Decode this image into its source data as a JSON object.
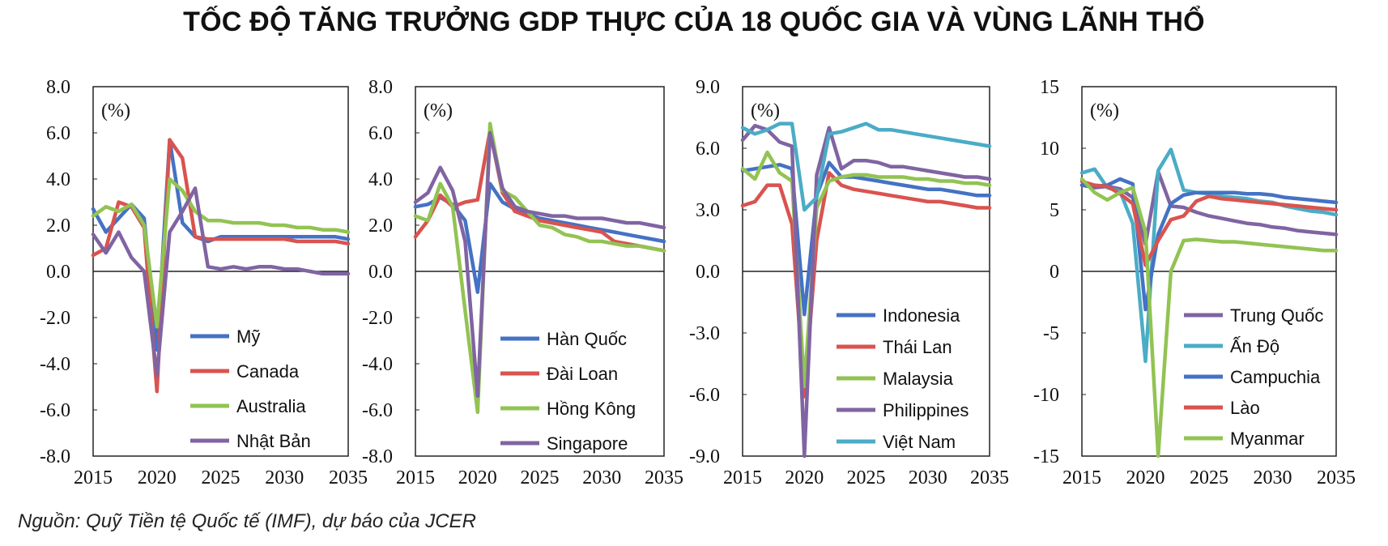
{
  "title": "TỐC ĐỘ TĂNG TRƯỞNG GDP THỰC CỦA 18 QUỐC GIA VÀ VÙNG LÃNH THỔ",
  "source": "Nguồn: Quỹ Tiền tệ Quốc tế (IMF), dự báo của JCER",
  "chart_data": [
    {
      "type": "line",
      "unit_label": "(%)",
      "ylim": [
        -8,
        8
      ],
      "yticks": [
        8,
        6,
        4,
        2,
        0,
        -2,
        -4,
        -6,
        -8
      ],
      "ytick_labels": [
        "8.0",
        "6.0",
        "4.0",
        "2.0",
        "0.0",
        "-2.0",
        "-4.0",
        "-6.0",
        "-8.0"
      ],
      "xlim": [
        2015,
        2035
      ],
      "xticks": [
        2015,
        2020,
        2025,
        2030,
        2035
      ],
      "x": [
        2015,
        2016,
        2017,
        2018,
        2019,
        2020,
        2021,
        2022,
        2023,
        2024,
        2025,
        2026,
        2027,
        2028,
        2029,
        2030,
        2031,
        2032,
        2033,
        2034,
        2035
      ],
      "series": [
        {
          "name": "Mỹ",
          "color": "#4472C4",
          "values": [
            2.7,
            1.7,
            2.3,
            2.9,
            2.3,
            -3.4,
            5.7,
            2.1,
            1.5,
            1.3,
            1.5,
            1.5,
            1.5,
            1.5,
            1.5,
            1.5,
            1.5,
            1.5,
            1.5,
            1.5,
            1.4
          ]
        },
        {
          "name": "Canada",
          "color": "#D9534F",
          "values": [
            0.7,
            1.0,
            3.0,
            2.8,
            1.9,
            -5.2,
            5.7,
            4.9,
            1.5,
            1.4,
            1.4,
            1.4,
            1.4,
            1.4,
            1.4,
            1.4,
            1.3,
            1.3,
            1.3,
            1.3,
            1.2
          ]
        },
        {
          "name": "Australia",
          "color": "#92C353",
          "values": [
            2.4,
            2.8,
            2.6,
            2.9,
            2.0,
            -2.4,
            4.0,
            3.5,
            2.6,
            2.2,
            2.2,
            2.1,
            2.1,
            2.1,
            2.0,
            2.0,
            1.9,
            1.9,
            1.8,
            1.8,
            1.7
          ]
        },
        {
          "name": "Nhật Bản",
          "color": "#8064A2",
          "values": [
            1.6,
            0.8,
            1.7,
            0.6,
            0.0,
            -4.5,
            1.7,
            2.6,
            3.6,
            0.2,
            0.1,
            0.2,
            0.1,
            0.2,
            0.2,
            0.1,
            0.1,
            0.0,
            -0.1,
            -0.1,
            -0.1
          ]
        }
      ]
    },
    {
      "type": "line",
      "unit_label": "(%)",
      "ylim": [
        -8,
        8
      ],
      "yticks": [
        8,
        6,
        4,
        2,
        0,
        -2,
        -4,
        -6,
        -8
      ],
      "ytick_labels": [
        "8.0",
        "6.0",
        "4.0",
        "2.0",
        "0.0",
        "-2.0",
        "-4.0",
        "-6.0",
        "-8.0"
      ],
      "xlim": [
        2015,
        2035
      ],
      "xticks": [
        2015,
        2020,
        2025,
        2030,
        2035
      ],
      "x": [
        2015,
        2016,
        2017,
        2018,
        2019,
        2020,
        2021,
        2022,
        2023,
        2024,
        2025,
        2026,
        2027,
        2028,
        2029,
        2030,
        2031,
        2032,
        2033,
        2034,
        2035
      ],
      "series": [
        {
          "name": "Hàn Quốc",
          "color": "#4472C4",
          "values": [
            2.8,
            2.9,
            3.2,
            2.9,
            2.2,
            -0.9,
            3.8,
            3.0,
            2.7,
            2.5,
            2.3,
            2.2,
            2.1,
            2.0,
            1.9,
            1.8,
            1.7,
            1.6,
            1.5,
            1.4,
            1.3
          ]
        },
        {
          "name": "Đài Loan",
          "color": "#D9534F",
          "values": [
            1.5,
            2.2,
            3.3,
            2.8,
            3.0,
            3.1,
            6.1,
            3.4,
            2.6,
            2.4,
            2.2,
            2.1,
            2.0,
            1.9,
            1.8,
            1.7,
            1.3,
            1.2,
            1.1,
            1.0,
            0.9
          ]
        },
        {
          "name": "Hồng Kông",
          "color": "#92C353",
          "values": [
            2.4,
            2.2,
            3.8,
            2.8,
            -1.7,
            -6.1,
            6.4,
            3.5,
            3.2,
            2.6,
            2.0,
            1.9,
            1.6,
            1.5,
            1.3,
            1.3,
            1.2,
            1.1,
            1.1,
            1.0,
            0.9
          ]
        },
        {
          "name": "Singapore",
          "color": "#8064A2",
          "values": [
            3.0,
            3.4,
            4.5,
            3.5,
            1.3,
            -5.4,
            6.0,
            3.6,
            2.8,
            2.6,
            2.5,
            2.4,
            2.4,
            2.3,
            2.3,
            2.3,
            2.2,
            2.1,
            2.1,
            2.0,
            1.9
          ]
        }
      ]
    },
    {
      "type": "line",
      "unit_label": "(%)",
      "ylim": [
        -9,
        9
      ],
      "yticks": [
        9,
        6,
        3,
        0,
        -3,
        -6,
        -9
      ],
      "ytick_labels": [
        "9.0",
        "6.0",
        "3.0",
        "0.0",
        "-3.0",
        "-6.0",
        "-9.0"
      ],
      "xlim": [
        2015,
        2035
      ],
      "xticks": [
        2015,
        2020,
        2025,
        2030,
        2035
      ],
      "x": [
        2015,
        2016,
        2017,
        2018,
        2019,
        2020,
        2021,
        2022,
        2023,
        2024,
        2025,
        2026,
        2027,
        2028,
        2029,
        2030,
        2031,
        2032,
        2033,
        2034,
        2035
      ],
      "series": [
        {
          "name": "Indonesia",
          "color": "#4472C4",
          "values": [
            4.9,
            5.0,
            5.1,
            5.2,
            5.0,
            -2.1,
            3.7,
            5.3,
            4.6,
            4.6,
            4.5,
            4.4,
            4.3,
            4.2,
            4.1,
            4.0,
            4.0,
            3.9,
            3.8,
            3.7,
            3.7
          ]
        },
        {
          "name": "Thái Lan",
          "color": "#D9534F",
          "values": [
            3.2,
            3.4,
            4.2,
            4.2,
            2.3,
            -6.1,
            1.5,
            4.8,
            4.2,
            4.0,
            3.9,
            3.8,
            3.7,
            3.6,
            3.5,
            3.4,
            3.4,
            3.3,
            3.2,
            3.1,
            3.1
          ]
        },
        {
          "name": "Malaysia",
          "color": "#92C353",
          "values": [
            5.0,
            4.5,
            5.8,
            4.8,
            4.4,
            -5.6,
            3.1,
            4.4,
            4.6,
            4.7,
            4.7,
            4.6,
            4.6,
            4.6,
            4.5,
            4.5,
            4.4,
            4.4,
            4.3,
            4.3,
            4.2
          ]
        },
        {
          "name": "Philippines",
          "color": "#8064A2",
          "values": [
            6.4,
            7.1,
            6.9,
            6.3,
            6.1,
            -9.0,
            4.7,
            7.0,
            5.0,
            5.4,
            5.4,
            5.3,
            5.1,
            5.1,
            5.0,
            4.9,
            4.8,
            4.7,
            4.6,
            4.6,
            4.5
          ]
        },
        {
          "name": "Việt Nam",
          "color": "#4BACC6",
          "values": [
            7.0,
            6.7,
            6.9,
            7.2,
            7.2,
            3.0,
            3.6,
            6.7,
            6.8,
            7.0,
            7.2,
            6.9,
            6.9,
            6.8,
            6.7,
            6.6,
            6.5,
            6.4,
            6.3,
            6.2,
            6.1
          ]
        }
      ]
    },
    {
      "type": "line",
      "unit_label": "(%)",
      "ylim": [
        -15,
        15
      ],
      "yticks": [
        15,
        10,
        5,
        0,
        -5,
        -10,
        -15
      ],
      "ytick_labels": [
        "15",
        "10",
        "5",
        "0",
        "-5",
        "-10",
        "-15"
      ],
      "xlim": [
        2015,
        2035
      ],
      "xticks": [
        2015,
        2020,
        2025,
        2030,
        2035
      ],
      "x": [
        2015,
        2016,
        2017,
        2018,
        2019,
        2020,
        2021,
        2022,
        2023,
        2024,
        2025,
        2026,
        2027,
        2028,
        2029,
        2030,
        2031,
        2032,
        2033,
        2034,
        2035
      ],
      "series": [
        {
          "name": "Trung Quốc",
          "color": "#8064A2",
          "values": [
            7.0,
            6.8,
            6.9,
            6.7,
            6.0,
            2.2,
            8.1,
            5.3,
            5.2,
            4.8,
            4.5,
            4.3,
            4.1,
            3.9,
            3.8,
            3.6,
            3.5,
            3.3,
            3.2,
            3.1,
            3.0
          ]
        },
        {
          "name": "Ấn Độ",
          "color": "#4BACC6",
          "values": [
            8.0,
            8.3,
            6.8,
            6.5,
            3.9,
            -7.3,
            8.2,
            9.9,
            6.6,
            6.4,
            6.3,
            6.1,
            6.0,
            5.9,
            5.7,
            5.6,
            5.3,
            5.1,
            4.9,
            4.8,
            4.6
          ]
        },
        {
          "name": "Campuchia",
          "color": "#4472C4",
          "values": [
            7.0,
            6.9,
            7.0,
            7.5,
            7.1,
            -3.1,
            3.0,
            5.5,
            6.2,
            6.4,
            6.4,
            6.4,
            6.4,
            6.3,
            6.3,
            6.2,
            6.0,
            5.9,
            5.8,
            5.7,
            5.6
          ]
        },
        {
          "name": "Lào",
          "color": "#D9534F",
          "values": [
            7.3,
            7.0,
            6.9,
            6.3,
            5.5,
            0.5,
            2.5,
            4.2,
            4.5,
            5.7,
            6.1,
            5.9,
            5.8,
            5.7,
            5.6,
            5.5,
            5.4,
            5.3,
            5.2,
            5.1,
            5.0
          ]
        },
        {
          "name": "Myanmar",
          "color": "#92C353",
          "values": [
            7.5,
            6.4,
            5.8,
            6.4,
            6.8,
            3.2,
            -15.0,
            0.0,
            2.5,
            2.6,
            2.5,
            2.4,
            2.4,
            2.3,
            2.2,
            2.1,
            2.0,
            1.9,
            1.8,
            1.7,
            1.7
          ]
        }
      ]
    }
  ]
}
